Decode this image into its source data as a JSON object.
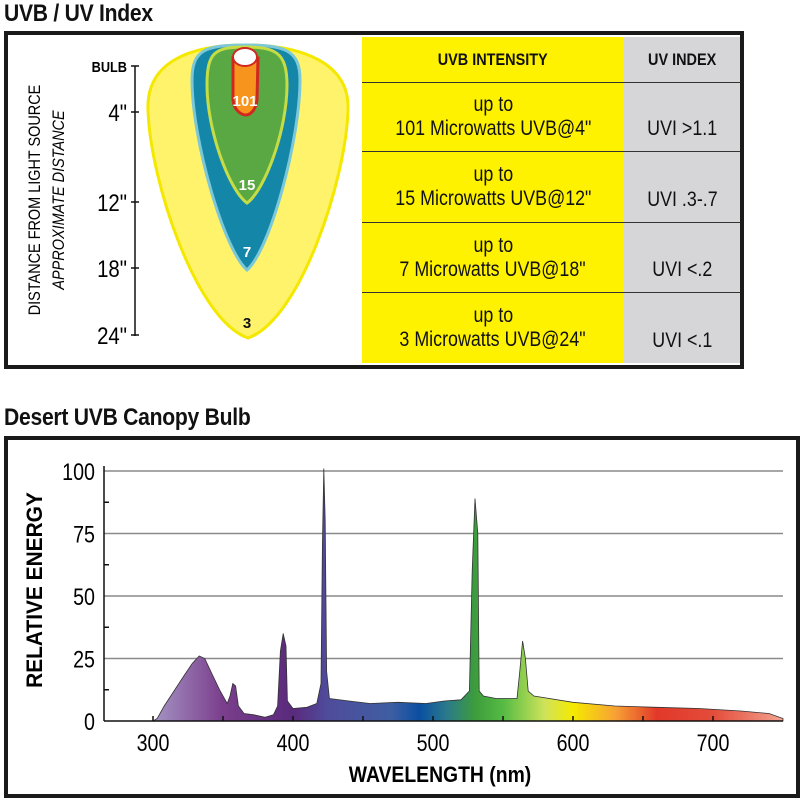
{
  "uv_section": {
    "title": "UVB / UV Index",
    "axis_label": "DISTANCE FROM LIGHT SOURCE",
    "axis_sublabel": "APPROXIMATE DISTANCE",
    "distance_ticks": [
      "BULB",
      "4\"",
      "12\"",
      "18\"",
      "24\""
    ],
    "zone_labels": [
      "101",
      "15",
      "7",
      "3"
    ],
    "zone_colors": {
      "outer": "#fff36b",
      "outer_edge": "#f4e800",
      "blue": "#1487a8",
      "blue_edge": "#7cc8d8",
      "green": "#5aa843",
      "green_edge": "#c5dc45",
      "orange": "#f7941d",
      "red": "#d0281e"
    },
    "table": {
      "headers": [
        "UVB INTENSITY",
        "UV INDEX"
      ],
      "rows": [
        {
          "line1": "up to",
          "line2": "101 Microwatts UVB@4\"",
          "uvi": "UVI >1.1"
        },
        {
          "line1": "up to",
          "line2": "15 Microwatts UVB@12\"",
          "uvi": "UVI .3-.7"
        },
        {
          "line1": "up to",
          "line2": "7 Microwatts UVB@18\"",
          "uvi": "UVI <.2"
        },
        {
          "line1": "up to",
          "line2": "3 Microwatts UVB@24\"",
          "uvi": "UVI <.1"
        }
      ]
    }
  },
  "spectrum_section": {
    "title": "Desert UVB Canopy Bulb"
  },
  "chart_data": {
    "type": "area",
    "title": "Desert UVB Canopy Bulb",
    "xlabel": "WAVELENGTH (nm)",
    "ylabel": "RELATIVE ENERGY",
    "xlim": [
      265,
      750
    ],
    "ylim": [
      0,
      100
    ],
    "xticks": [
      300,
      400,
      500,
      600,
      700
    ],
    "yticks": [
      0,
      25,
      50,
      75,
      100
    ],
    "grid": "horizontal",
    "points": [
      [
        265,
        0
      ],
      [
        300,
        0
      ],
      [
        303,
        1
      ],
      [
        308,
        6
      ],
      [
        315,
        12
      ],
      [
        322,
        18
      ],
      [
        328,
        23
      ],
      [
        333,
        26
      ],
      [
        337,
        25
      ],
      [
        342,
        19
      ],
      [
        348,
        12
      ],
      [
        353,
        7
      ],
      [
        355,
        10
      ],
      [
        357,
        15
      ],
      [
        359,
        14
      ],
      [
        361,
        6
      ],
      [
        365,
        3
      ],
      [
        372,
        2.5
      ],
      [
        380,
        1.5
      ],
      [
        386,
        2.5
      ],
      [
        389,
        6
      ],
      [
        391,
        28
      ],
      [
        393,
        35
      ],
      [
        395,
        30
      ],
      [
        396,
        8
      ],
      [
        400,
        5
      ],
      [
        410,
        5.5
      ],
      [
        417,
        7
      ],
      [
        420,
        15
      ],
      [
        421,
        70
      ],
      [
        422,
        101
      ],
      [
        423,
        80
      ],
      [
        424,
        20
      ],
      [
        426,
        9
      ],
      [
        440,
        8
      ],
      [
        455,
        7
      ],
      [
        475,
        7.5
      ],
      [
        495,
        7
      ],
      [
        508,
        8
      ],
      [
        520,
        8.5
      ],
      [
        526,
        12
      ],
      [
        528,
        60
      ],
      [
        530,
        89
      ],
      [
        532,
        75
      ],
      [
        533,
        12
      ],
      [
        536,
        10
      ],
      [
        545,
        9
      ],
      [
        560,
        9
      ],
      [
        562,
        20
      ],
      [
        564,
        32
      ],
      [
        566,
        25
      ],
      [
        568,
        12
      ],
      [
        572,
        10
      ],
      [
        600,
        7.5
      ],
      [
        630,
        6
      ],
      [
        660,
        5.5
      ],
      [
        690,
        5
      ],
      [
        720,
        4
      ],
      [
        740,
        3
      ],
      [
        750,
        1
      ]
    ],
    "fill_gradient": [
      [
        300,
        "#a594c4"
      ],
      [
        350,
        "#7a3e8c"
      ],
      [
        400,
        "#5a2a7c"
      ],
      [
        425,
        "#4f4c9c"
      ],
      [
        470,
        "#3f5ea2"
      ],
      [
        490,
        "#0a4fa2"
      ],
      [
        510,
        "#2a7a8a"
      ],
      [
        530,
        "#3d9c3c"
      ],
      [
        550,
        "#55bb44"
      ],
      [
        580,
        "#cfe35a"
      ],
      [
        600,
        "#f5ea00"
      ],
      [
        630,
        "#f7a234"
      ],
      [
        660,
        "#e2382a"
      ],
      [
        700,
        "#e44c3a"
      ],
      [
        750,
        "#f3a290"
      ]
    ]
  }
}
